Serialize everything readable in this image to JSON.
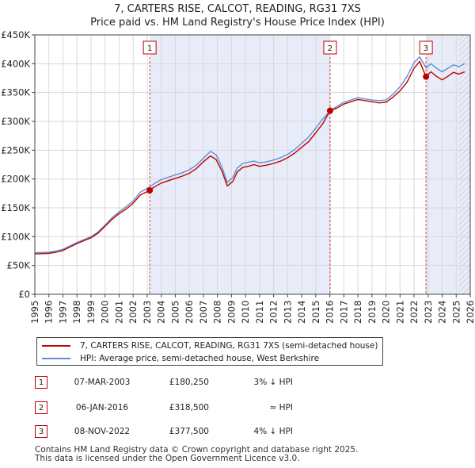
{
  "chart_data": {
    "type": "line",
    "title": "7, CARTERS RISE, CALCOT, READING, RG31 7XS",
    "subtitle": "Price paid vs. HM Land Registry's House Price Index (HPI)",
    "xlim": [
      1995,
      2026
    ],
    "ylim": [
      0,
      450000
    ],
    "x_ticks": [
      "1995",
      "1996",
      "1997",
      "1998",
      "1999",
      "2000",
      "2001",
      "2002",
      "2003",
      "2004",
      "2005",
      "2006",
      "2007",
      "2008",
      "2009",
      "2010",
      "2011",
      "2012",
      "2013",
      "2014",
      "2015",
      "2016",
      "2017",
      "2018",
      "2019",
      "2020",
      "2021",
      "2022",
      "2023",
      "2024",
      "2025",
      "2026"
    ],
    "y_ticks": [
      {
        "value": 0,
        "label": "£0"
      },
      {
        "value": 50000,
        "label": "£50K"
      },
      {
        "value": 100000,
        "label": "£100K"
      },
      {
        "value": 150000,
        "label": "£150K"
      },
      {
        "value": 200000,
        "label": "£200K"
      },
      {
        "value": 250000,
        "label": "£250K"
      },
      {
        "value": 300000,
        "label": "£300K"
      },
      {
        "value": 350000,
        "label": "£350K"
      },
      {
        "value": 400000,
        "label": "£400K"
      },
      {
        "value": 450000,
        "label": "£450K"
      }
    ],
    "grid": true,
    "shaded_ranges": [
      [
        2003.18,
        2016.02
      ],
      [
        2022.85,
        2026
      ]
    ],
    "hatched_from": 2025.2,
    "series": [
      {
        "name": "7, CARTERS RISE, CALCOT, READING, RG31 7XS (semi-detached house)",
        "color": "#c00000",
        "x": [
          1995,
          1995.5,
          1996,
          1996.5,
          1997,
          1997.5,
          1998,
          1998.5,
          1999,
          1999.5,
          2000,
          2000.5,
          2001,
          2001.5,
          2002,
          2002.5,
          2003.18,
          2003.5,
          2004,
          2004.5,
          2005,
          2005.5,
          2006,
          2006.5,
          2007,
          2007.5,
          2007.9,
          2008.3,
          2008.7,
          2009.1,
          2009.4,
          2009.8,
          2010.2,
          2010.6,
          2011,
          2011.5,
          2012,
          2012.5,
          2013,
          2013.5,
          2014,
          2014.5,
          2015,
          2015.5,
          2016.02,
          2016.5,
          2017,
          2017.5,
          2018,
          2018.5,
          2019,
          2019.5,
          2020,
          2020.5,
          2021,
          2021.5,
          2022,
          2022.4,
          2022.85,
          2023.2,
          2023.6,
          2024,
          2024.4,
          2024.8,
          2025.2,
          2025.6
        ],
        "values": [
          70000,
          70500,
          71000,
          73000,
          76000,
          82000,
          88000,
          93000,
          98000,
          106000,
          118000,
          130000,
          140000,
          148000,
          158000,
          172000,
          180250,
          186000,
          193000,
          197000,
          201000,
          205000,
          210000,
          218000,
          230000,
          240000,
          234000,
          215000,
          188000,
          196000,
          212000,
          220000,
          222000,
          225000,
          222000,
          224000,
          227000,
          231000,
          237000,
          245000,
          255000,
          265000,
          280000,
          296000,
          318500,
          323000,
          330000,
          334000,
          338000,
          336000,
          334000,
          332000,
          333000,
          342000,
          353000,
          368000,
          392000,
          404000,
          377500,
          386000,
          378000,
          372000,
          378000,
          385000,
          382000,
          386000
        ]
      },
      {
        "name": "HPI: Average price, semi-detached house, West Berkshire",
        "color": "#5b8fd6",
        "x": [
          1995,
          1995.5,
          1996,
          1996.5,
          1997,
          1997.5,
          1998,
          1998.5,
          1999,
          1999.5,
          2000,
          2000.5,
          2001,
          2001.5,
          2002,
          2002.5,
          2003.18,
          2003.5,
          2004,
          2004.5,
          2005,
          2005.5,
          2006,
          2006.5,
          2007,
          2007.5,
          2007.9,
          2008.3,
          2008.7,
          2009.1,
          2009.4,
          2009.8,
          2010.2,
          2010.6,
          2011,
          2011.5,
          2012,
          2012.5,
          2013,
          2013.5,
          2014,
          2014.5,
          2015,
          2015.5,
          2016.02,
          2016.5,
          2017,
          2017.5,
          2018,
          2018.5,
          2019,
          2019.5,
          2020,
          2020.5,
          2021,
          2021.5,
          2022,
          2022.4,
          2022.85,
          2023.2,
          2023.6,
          2024,
          2024.4,
          2024.8,
          2025.2,
          2025.6
        ],
        "values": [
          72000,
          72500,
          73000,
          75000,
          78000,
          84000,
          90000,
          95000,
          100000,
          108000,
          120000,
          133000,
          143000,
          152000,
          162000,
          177000,
          186000,
          192000,
          199000,
          203000,
          207000,
          211000,
          216000,
          224000,
          236000,
          248000,
          242000,
          222000,
          194000,
          203000,
          219000,
          227000,
          229000,
          231000,
          228000,
          230000,
          233000,
          237000,
          243000,
          251000,
          262000,
          273000,
          288000,
          304000,
          318000,
          326000,
          333000,
          337000,
          341000,
          339000,
          337000,
          336000,
          337000,
          347000,
          360000,
          378000,
          402000,
          412000,
          393000,
          400000,
          392000,
          386000,
          392000,
          398000,
          395000,
          400000
        ]
      }
    ],
    "markers": [
      {
        "label": "1",
        "x": 2003.18,
        "y": 180250
      },
      {
        "label": "2",
        "x": 2016.02,
        "y": 318500
      },
      {
        "label": "3",
        "x": 2022.85,
        "y": 377500
      }
    ]
  },
  "legend": {
    "items": [
      {
        "label": "7, CARTERS RISE, CALCOT, READING, RG31 7XS (semi-detached house)",
        "color": "#c00000"
      },
      {
        "label": "HPI: Average price, semi-detached house, West Berkshire",
        "color": "#5b8fd6"
      }
    ]
  },
  "transactions": [
    {
      "num": "1",
      "date": "07-MAR-2003",
      "price": "£180,250",
      "hpi": "3% ↓ HPI"
    },
    {
      "num": "2",
      "date": "06-JAN-2016",
      "price": "£318,500",
      "hpi": "≈ HPI"
    },
    {
      "num": "3",
      "date": "08-NOV-2022",
      "price": "£377,500",
      "hpi": "4% ↓ HPI"
    }
  ],
  "footer": {
    "line1": "Contains HM Land Registry data © Crown copyright and database right 2025.",
    "line2": "This data is licensed under the Open Government Licence v3.0."
  }
}
